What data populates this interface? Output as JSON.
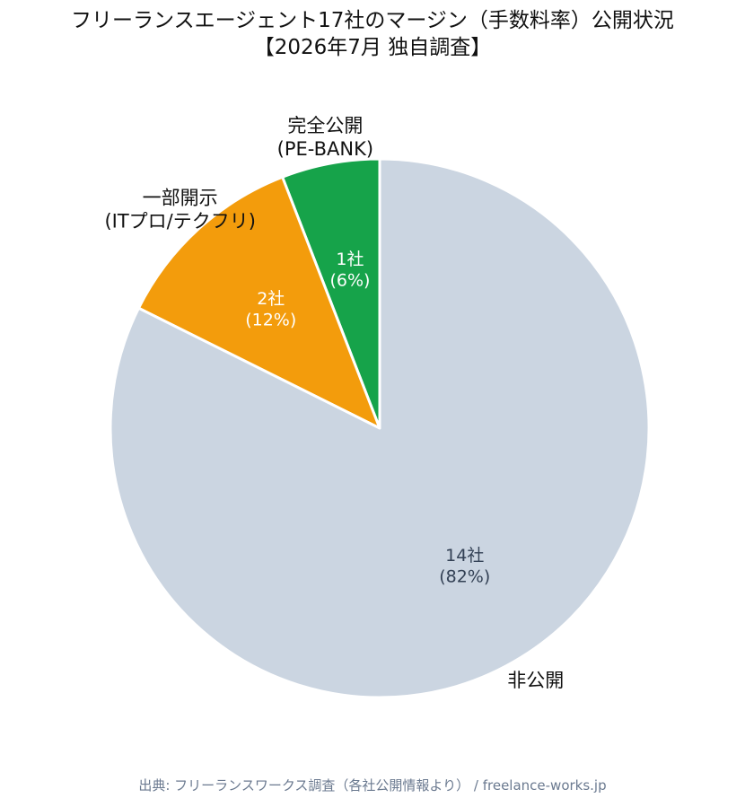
{
  "title": {
    "line1": "フリーランスエージェント17社のマージン（手数料率）公開状況",
    "line2": "【2026年7月 独自調査】"
  },
  "chart_data": {
    "type": "pie",
    "start_angle_deg": 0,
    "direction": "counterclockwise",
    "slices": [
      {
        "label_lines": [
          "完全公開",
          "(PE-BANK)"
        ],
        "count": 1,
        "value_lines": [
          "1社",
          "(6%)"
        ],
        "percent": 6,
        "color": "#16a34a",
        "value_color": "#ffffff"
      },
      {
        "label_lines": [
          "一部開示",
          "(ITプロ/テクフリ)"
        ],
        "count": 2,
        "value_lines": [
          "2社",
          "(12%)"
        ],
        "percent": 12,
        "color": "#f39c0c",
        "value_color": "#ffffff"
      },
      {
        "label_lines": [
          "非公開"
        ],
        "count": 14,
        "value_lines": [
          "14社",
          "(82%)"
        ],
        "percent": 82,
        "color": "#cbd5e1",
        "value_color": "#334155"
      }
    ]
  },
  "source": "出典: フリーランスワークス調査（各社公開情報より） / freelance-works.jp"
}
